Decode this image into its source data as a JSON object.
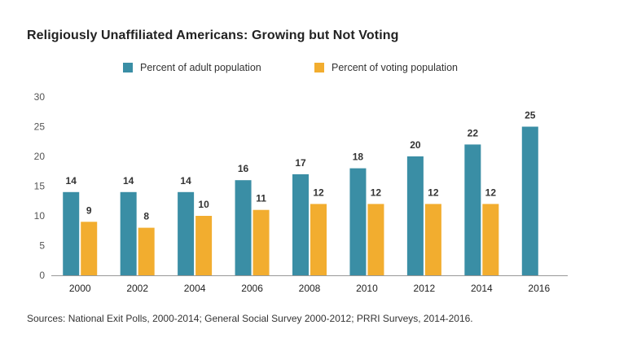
{
  "chart_data": {
    "type": "bar",
    "title": "Religiously Unaffiliated Americans: Growing but Not Voting",
    "categories": [
      "2000",
      "2002",
      "2004",
      "2006",
      "2008",
      "2010",
      "2012",
      "2014",
      "2016"
    ],
    "series": [
      {
        "name": "Percent of adult population",
        "color": "#3a8ea5",
        "values": [
          14,
          14,
          14,
          16,
          17,
          18,
          20,
          22,
          25
        ]
      },
      {
        "name": "Percent of voting population",
        "color": "#f2ad2f",
        "values": [
          9,
          8,
          10,
          11,
          12,
          12,
          12,
          12,
          null
        ]
      }
    ],
    "ylim": [
      0,
      30
    ],
    "yticks": [
      0,
      5,
      10,
      15,
      20,
      25,
      30
    ],
    "xlabel": "",
    "ylabel": "",
    "legend_position": "top-center",
    "grid": false,
    "source": "Sources: National Exit Polls, 2000-2014; General Social Survey 2000-2012; PRRI Surveys, 2014-2016."
  }
}
